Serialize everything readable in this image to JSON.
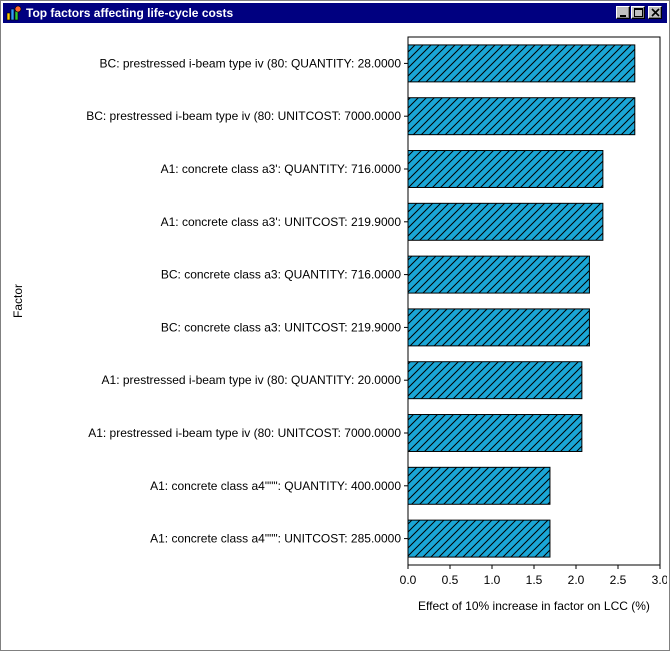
{
  "window": {
    "title": "Top factors affecting life-cycle costs",
    "icon": "chart-app-icon",
    "buttons": [
      "minimize-icon",
      "maximize-icon",
      "close-icon"
    ]
  },
  "chart_data": {
    "type": "bar",
    "orientation": "horizontal",
    "title": "",
    "xlabel": "Effect of 10% increase in factor on LCC (%)",
    "ylabel": "Factor",
    "xlim": [
      0,
      3.0
    ],
    "xticks": [
      "0.0",
      "0.5",
      "1.0",
      "1.5",
      "2.0",
      "2.5",
      "3.0"
    ],
    "bar_color": "#1aa6d6",
    "bar_pattern": "diagonal-hatch",
    "categories": [
      "BC: prestressed i-beam type iv (80: QUANTITY: 28.0000",
      "BC: prestressed i-beam type iv (80: UNITCOST: 7000.0000",
      "A1: concrete class a3': QUANTITY: 716.0000",
      "A1: concrete class a3': UNITCOST: 219.9000",
      "BC: concrete class a3: QUANTITY: 716.0000",
      "BC: concrete class a3: UNITCOST: 219.9000",
      "A1: prestressed i-beam type iv (80: QUANTITY: 20.0000",
      "A1: prestressed i-beam type iv (80: UNITCOST: 7000.0000",
      "A1: concrete class a4\"\"\": QUANTITY: 400.0000",
      "A1: concrete class a4\"\"\": UNITCOST: 285.0000"
    ],
    "values": [
      2.7,
      2.7,
      2.32,
      2.32,
      2.16,
      2.16,
      2.07,
      2.07,
      1.69,
      1.69
    ]
  }
}
